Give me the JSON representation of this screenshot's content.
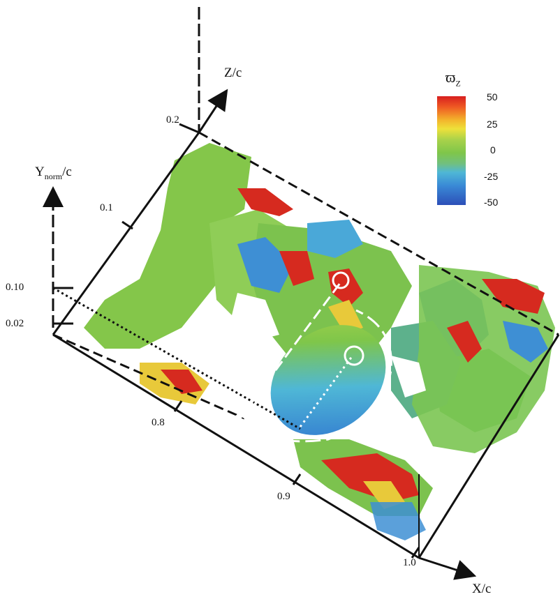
{
  "colorbar": {
    "title_main": "ϖ",
    "title_sub": "Z",
    "ticks": [
      "50",
      "25",
      "0",
      "-25",
      "-50"
    ],
    "colors": [
      "#d81f1f",
      "#f3b52c",
      "#7fc64a",
      "#4fb7d6",
      "#2c4fb8"
    ]
  },
  "axes": {
    "z": {
      "title": "Z/c",
      "ticks": [
        "0.1",
        "0.2"
      ]
    },
    "x": {
      "title": "X/c",
      "ticks": [
        "0.8",
        "0.9",
        "1.0"
      ]
    },
    "y": {
      "title_main": "Y",
      "title_sub": "norm",
      "title_suffix": "/c",
      "ticks": [
        "0.10",
        "0.02"
      ]
    }
  },
  "isosurface_colors": {
    "green": "#7fc64a",
    "blue": "#3e8fd4",
    "red": "#d62a1f",
    "yellow": "#e8c93a"
  }
}
